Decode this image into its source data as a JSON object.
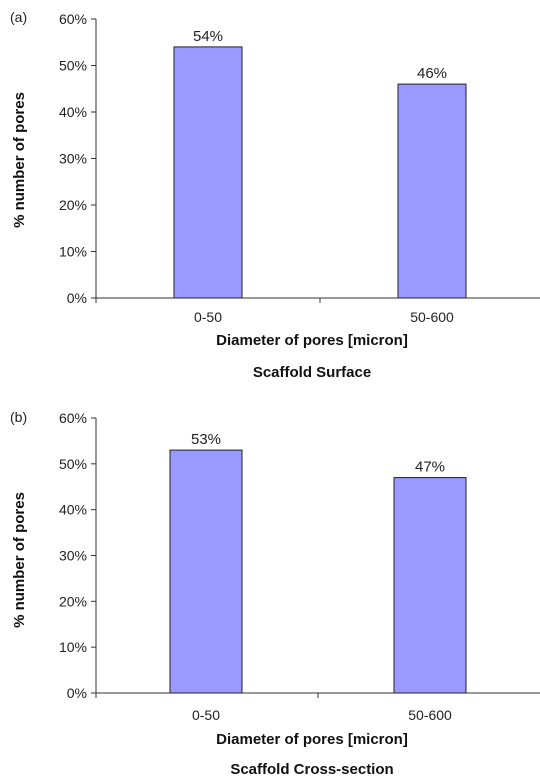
{
  "chart_data": [
    {
      "panel": "(a)",
      "type": "bar",
      "categories": [
        "0-50",
        "50-600"
      ],
      "values": [
        54,
        46
      ],
      "data_labels": [
        "54%",
        "46%"
      ],
      "title": "Scaffold Surface",
      "xlabel": "Diameter of pores [micron]",
      "ylabel": "% number of pores",
      "ylim": [
        0,
        60
      ],
      "yticks": [
        "0%",
        "10%",
        "20%",
        "30%",
        "40%",
        "50%",
        "60%"
      ],
      "bar_color": "#9999ff",
      "grid": false
    },
    {
      "panel": "(b)",
      "type": "bar",
      "categories": [
        "0-50",
        "50-600"
      ],
      "values": [
        53,
        47
      ],
      "data_labels": [
        "53%",
        "47%"
      ],
      "title": "Scaffold Cross-section",
      "xlabel": "Diameter of pores [micron]",
      "ylabel": "% number of pores",
      "ylim": [
        0,
        60
      ],
      "yticks": [
        "0%",
        "10%",
        "20%",
        "30%",
        "40%",
        "50%",
        "60%"
      ],
      "bar_color": "#9999ff",
      "grid": false
    }
  ]
}
